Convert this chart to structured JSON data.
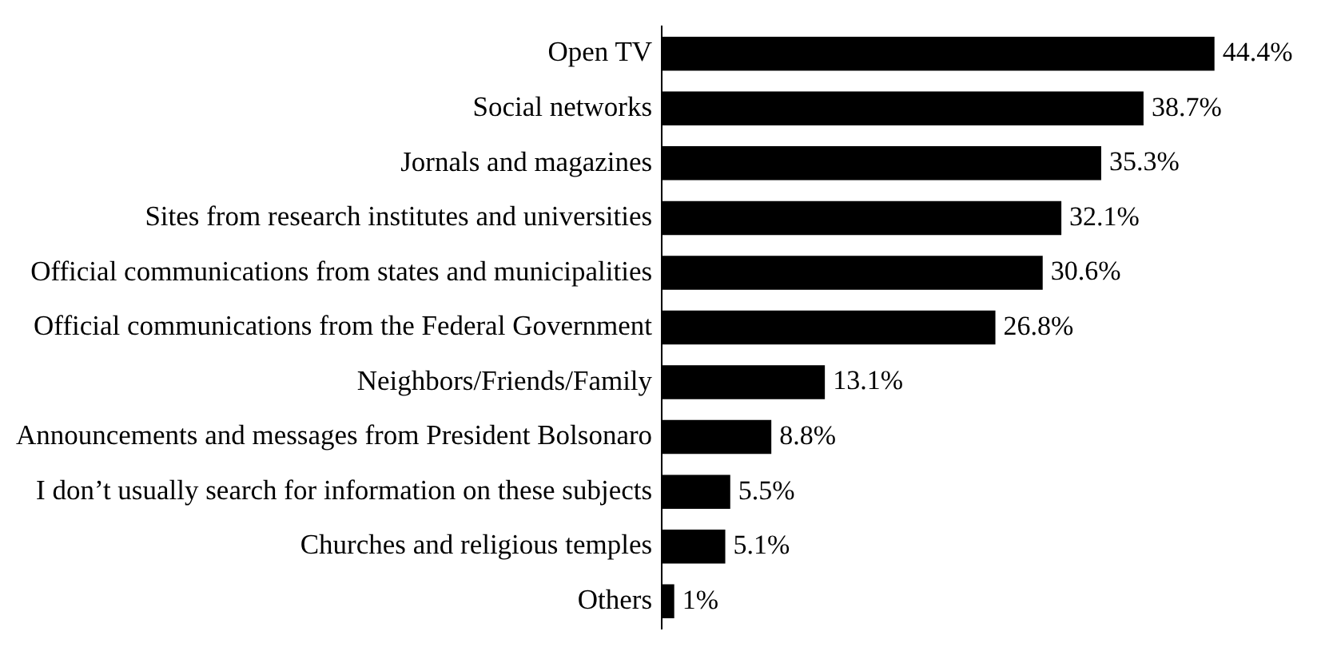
{
  "chart_data": {
    "type": "bar",
    "orientation": "horizontal",
    "color": "#000000",
    "categories": [
      "Open TV",
      "Social networks",
      "Jornals and magazines",
      "Sites from research institutes and universities",
      "Official communications from states and municipalities",
      "Official communications from the Federal Government",
      "Neighbors/Friends/Family",
      "Announcements and messages from President Bolsonaro",
      "I don’t usually search for information on these subjects",
      "Churches and religious temples",
      "Others"
    ],
    "values": [
      44.4,
      38.7,
      35.3,
      32.1,
      30.6,
      26.8,
      13.1,
      8.8,
      5.5,
      5.1,
      1
    ],
    "value_labels": [
      "44.4%",
      "38.7%",
      "35.3%",
      "32.1%",
      "30.6%",
      "26.8%",
      "13.1%",
      "8.8%",
      "5.5%",
      "5.1%",
      "1%"
    ],
    "legend": false,
    "grid": false
  }
}
